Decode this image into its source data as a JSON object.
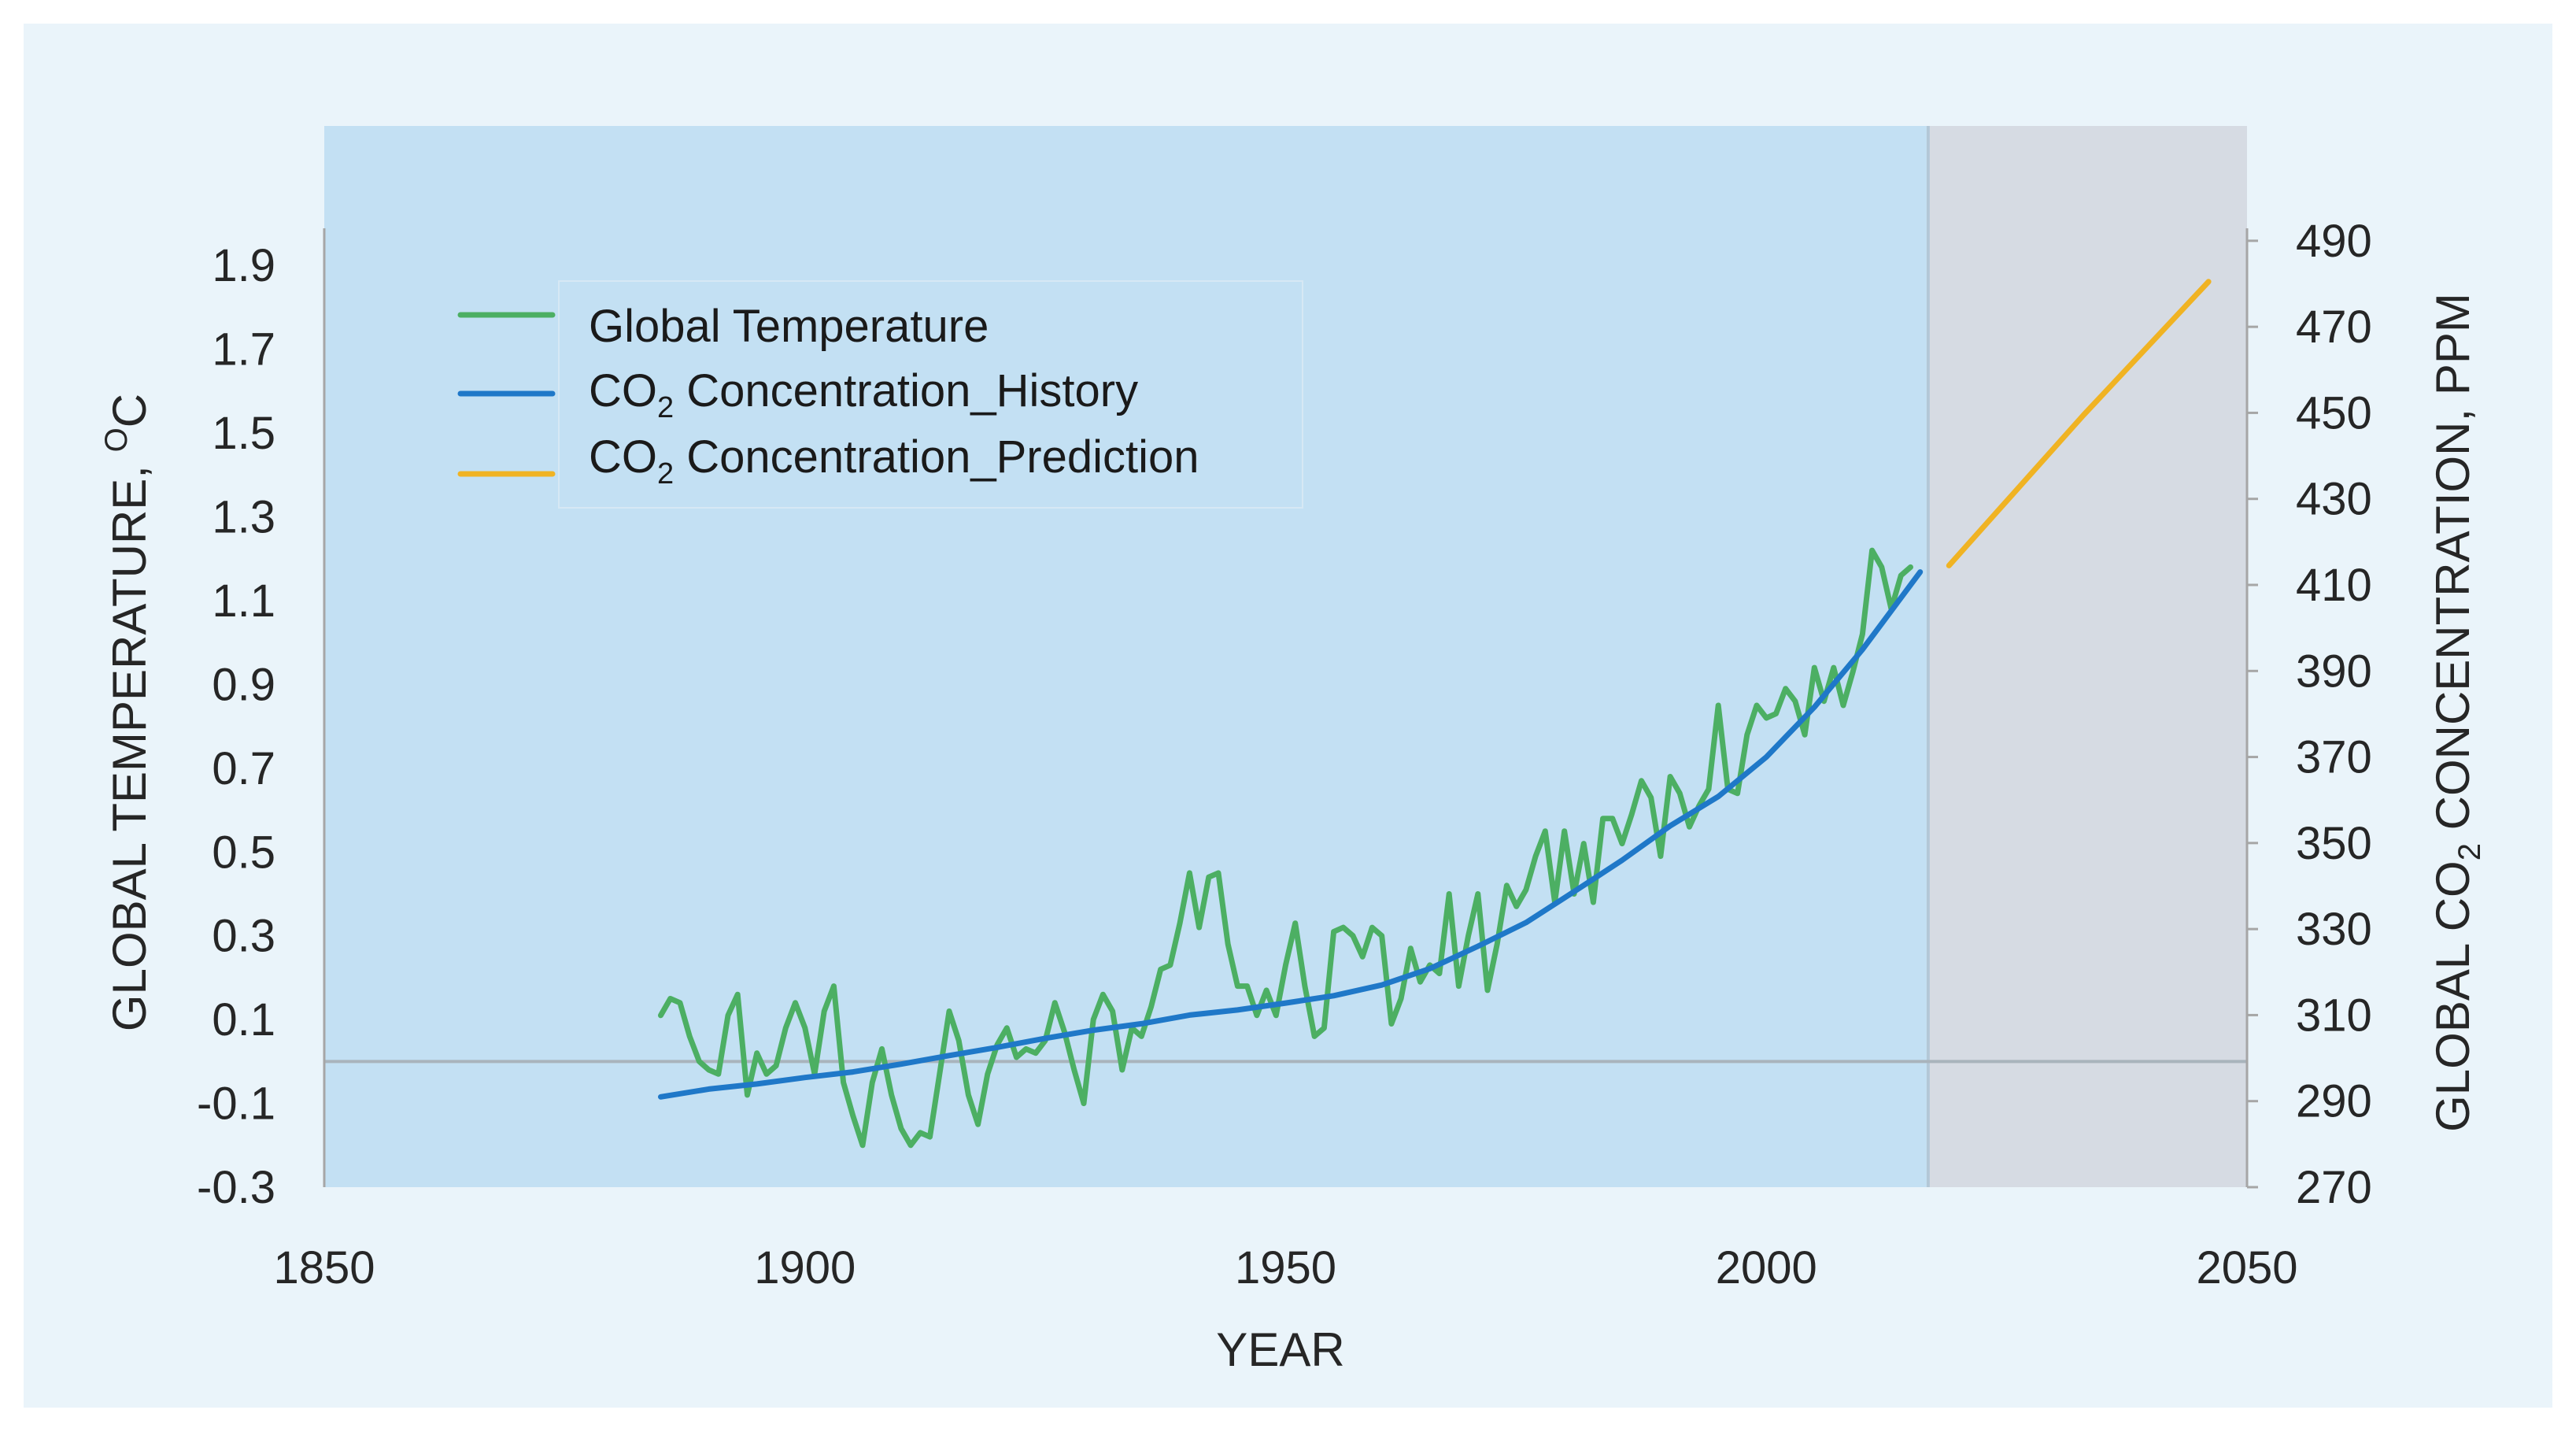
{
  "colors": {
    "frame_bg": "#eaf4fa",
    "history_region": "#c3e0f3",
    "prediction_region": "#d6dbe3",
    "temperature": "#4caf63",
    "co2_history": "#1f78c8",
    "co2_prediction": "#f0b323",
    "baseline": "#a9b4bc",
    "axis": "#a6a6a6"
  },
  "chart_data": {
    "type": "line",
    "xlabel": "YEAR",
    "ylabel_left": "GLOBAL TEMPERATURE, ",
    "ylabel_left_sup": "O",
    "ylabel_left_unit": "C",
    "ylabel_right_prefix": "GLOBAL CO",
    "ylabel_right_sub": "2",
    "ylabel_right_suffix": " CONCENTRATION, PPM",
    "xlim": [
      1850,
      2050
    ],
    "ylim_left": [
      -0.3,
      2.0
    ],
    "ylim_right": [
      270,
      494
    ],
    "x_ticks": [
      "1850",
      "1900",
      "1950",
      "2000",
      "2050"
    ],
    "y_left_ticks": [
      "-0.3",
      "-0.1",
      "0.1",
      "0.3",
      "0.5",
      "0.7",
      "0.9",
      "1.1",
      "1.3",
      "1.5",
      "1.7",
      "1.9"
    ],
    "y_right_ticks": [
      "270",
      "290",
      "310",
      "330",
      "350",
      "370",
      "390",
      "410",
      "430",
      "450",
      "470",
      "490"
    ],
    "baseline_temperature": 0.0,
    "regions": [
      {
        "name": "history",
        "from": 1850,
        "to": 2017
      },
      {
        "name": "prediction",
        "from": 2017,
        "to": 2050
      }
    ],
    "legend": {
      "position": "top-left",
      "entries": [
        {
          "id": "temperature",
          "text": "Global Temperature"
        },
        {
          "id": "co2_history",
          "prefix": "CO",
          "sub": "2",
          "suffix": " Concentration_History"
        },
        {
          "id": "co2_prediction",
          "prefix": "CO",
          "sub": "2",
          "suffix": " Concentration_Prediction"
        }
      ]
    },
    "series": [
      {
        "id": "temperature",
        "name": "Global Temperature",
        "axis": "left",
        "x": [
          1885,
          1886,
          1887,
          1888,
          1889,
          1890,
          1891,
          1892,
          1893,
          1894,
          1895,
          1896,
          1897,
          1898,
          1899,
          1900,
          1901,
          1902,
          1903,
          1904,
          1905,
          1906,
          1907,
          1908,
          1909,
          1910,
          1911,
          1912,
          1913,
          1914,
          1915,
          1916,
          1917,
          1918,
          1919,
          1920,
          1921,
          1922,
          1923,
          1924,
          1925,
          1926,
          1927,
          1928,
          1929,
          1930,
          1931,
          1932,
          1933,
          1934,
          1935,
          1936,
          1937,
          1938,
          1939,
          1940,
          1941,
          1942,
          1943,
          1944,
          1945,
          1946,
          1947,
          1948,
          1949,
          1950,
          1951,
          1952,
          1953,
          1954,
          1955,
          1956,
          1957,
          1958,
          1959,
          1960,
          1961,
          1962,
          1963,
          1964,
          1965,
          1966,
          1967,
          1968,
          1969,
          1970,
          1971,
          1972,
          1973,
          1974,
          1975,
          1976,
          1977,
          1978,
          1979,
          1980,
          1981,
          1982,
          1983,
          1984,
          1985,
          1986,
          1987,
          1988,
          1989,
          1990,
          1991,
          1992,
          1993,
          1994,
          1995,
          1996,
          1997,
          1998,
          1999,
          2000,
          2001,
          2002,
          2003,
          2004,
          2005,
          2006,
          2007,
          2008,
          2009,
          2010,
          2011,
          2012,
          2013,
          2014,
          2015
        ],
        "values": [
          0.11,
          0.15,
          0.14,
          0.06,
          0.0,
          -0.02,
          -0.03,
          0.11,
          0.16,
          -0.08,
          0.02,
          -0.03,
          -0.01,
          0.08,
          0.14,
          0.08,
          -0.03,
          0.12,
          0.18,
          -0.05,
          -0.13,
          -0.2,
          -0.05,
          0.03,
          -0.08,
          -0.16,
          -0.2,
          -0.17,
          -0.18,
          -0.03,
          0.12,
          0.05,
          -0.08,
          -0.15,
          -0.03,
          0.04,
          0.08,
          0.01,
          0.03,
          0.02,
          0.05,
          0.14,
          0.07,
          -0.02,
          -0.1,
          0.1,
          0.16,
          0.12,
          -0.02,
          0.08,
          0.06,
          0.13,
          0.22,
          0.23,
          0.33,
          0.45,
          0.32,
          0.44,
          0.45,
          0.28,
          0.18,
          0.18,
          0.11,
          0.17,
          0.11,
          0.23,
          0.33,
          0.18,
          0.06,
          0.08,
          0.31,
          0.32,
          0.3,
          0.25,
          0.32,
          0.3,
          0.09,
          0.15,
          0.27,
          0.19,
          0.23,
          0.21,
          0.4,
          0.18,
          0.3,
          0.4,
          0.17,
          0.28,
          0.42,
          0.37,
          0.41,
          0.49,
          0.55,
          0.38,
          0.55,
          0.4,
          0.52,
          0.38,
          0.58,
          0.58,
          0.52,
          0.59,
          0.67,
          0.63,
          0.49,
          0.68,
          0.64,
          0.56,
          0.61,
          0.65,
          0.85,
          0.65,
          0.64,
          0.78,
          0.85,
          0.82,
          0.83,
          0.89,
          0.86,
          0.78,
          0.94,
          0.86,
          0.94,
          0.85,
          0.93,
          1.02,
          1.22,
          1.18,
          1.08,
          1.16,
          1.18
        ]
      },
      {
        "id": "co2_history",
        "name": "CO2 Concentration_History",
        "axis": "right",
        "x": [
          1885,
          1890,
          1895,
          1900,
          1905,
          1910,
          1915,
          1920,
          1925,
          1930,
          1935,
          1940,
          1945,
          1950,
          1955,
          1960,
          1965,
          1970,
          1975,
          1980,
          1985,
          1990,
          1995,
          2000,
          2005,
          2010,
          2016
        ],
        "values": [
          291.0,
          292.8,
          294.0,
          295.5,
          296.8,
          298.6,
          300.6,
          302.5,
          304.6,
          306.5,
          308.0,
          310.0,
          311.2,
          312.8,
          314.5,
          317.0,
          320.8,
          326.0,
          331.5,
          338.7,
          346.0,
          354.0,
          360.8,
          370.0,
          381.6,
          395.0,
          413.0
        ]
      },
      {
        "id": "co2_prediction",
        "name": "CO2 Concentration_Prediction",
        "axis": "right",
        "x": [
          2019,
          2033,
          2046
        ],
        "values": [
          414.5,
          449.5,
          480.5
        ]
      }
    ]
  }
}
